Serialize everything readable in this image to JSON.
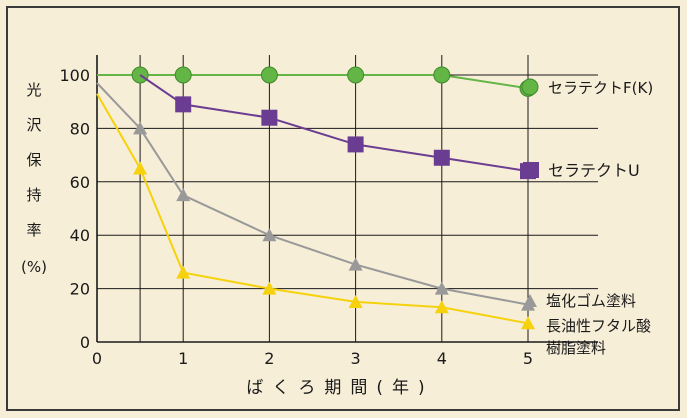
{
  "chart_data": {
    "type": "line",
    "ylabel_chars": [
      "光",
      "沢",
      "保",
      "持",
      "率",
      "(%)"
    ],
    "xlabel": "ばくろ期間(年)",
    "x_ticks": [
      0,
      1,
      2,
      3,
      4,
      5
    ],
    "y_ticks": [
      0,
      20,
      40,
      60,
      80,
      100
    ],
    "xlim": [
      0,
      5.7
    ],
    "ylim": [
      0,
      108
    ],
    "grid": true,
    "series": [
      {
        "name": "セラテクトF(K)",
        "color": "#63b546",
        "marker": "circle",
        "points": [
          [
            0.5,
            100
          ],
          [
            1,
            100
          ],
          [
            2,
            100
          ],
          [
            3,
            100
          ],
          [
            4,
            100
          ],
          [
            5,
            95
          ]
        ],
        "start_point": [
          0,
          100
        ]
      },
      {
        "name": "セラテクトU",
        "color": "#6b3d92",
        "marker": "square",
        "points": [
          [
            1,
            89
          ],
          [
            2,
            84
          ],
          [
            3,
            74
          ],
          [
            4,
            69
          ],
          [
            5,
            64
          ]
        ],
        "start_point": [
          0.5,
          100
        ]
      },
      {
        "name": "塩化ゴム塗料",
        "color": "#999999",
        "marker": "triangle",
        "points": [
          [
            0.5,
            80
          ],
          [
            1,
            55
          ],
          [
            2,
            40
          ],
          [
            3,
            29
          ],
          [
            4,
            20
          ],
          [
            5,
            14
          ]
        ],
        "start_point": [
          0,
          97
        ]
      },
      {
        "name": "長油性フタル酸樹脂塗料",
        "name_lines": [
          "長油性フタル酸",
          "樹脂塗料"
        ],
        "color": "#f5d20c",
        "marker": "triangle",
        "points": [
          [
            0.5,
            65
          ],
          [
            1,
            26
          ],
          [
            2,
            20
          ],
          [
            3,
            15
          ],
          [
            4,
            13
          ],
          [
            5,
            7
          ]
        ],
        "start_point": [
          0,
          93
        ]
      }
    ]
  },
  "colors": {
    "background": "#f7eed8",
    "frame": "#3a3a3a",
    "grid": "#1a1a1a"
  }
}
